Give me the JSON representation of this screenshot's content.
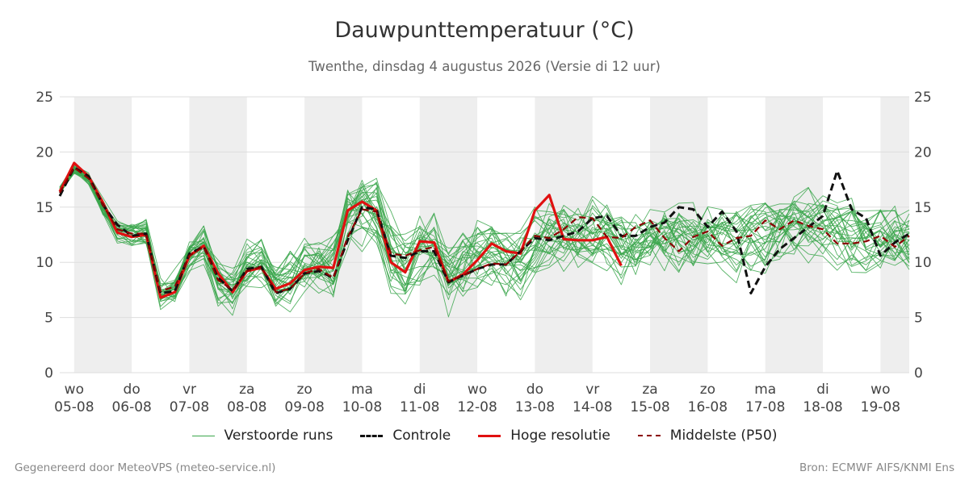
{
  "colors": {
    "members": "#3aa64b",
    "control": "#111111",
    "hires": "#e01010",
    "median": "#8b0000",
    "band": "#eeeeee",
    "grid": "#dddddd"
  },
  "footer": {
    "left": "Gegenereerd door MeteoVPS (meteo-service.nl)",
    "right": "Bron: ECMWF AIFS/KNMI Ens"
  },
  "chart_data": {
    "type": "line",
    "title": "Dauwpunttemperatuur (°C)",
    "subtitle": "Twenthe, dinsdag  4 augustus 2026 (Versie di 12 uur)",
    "ylim": [
      0,
      25
    ],
    "yticks": [
      0,
      5,
      10,
      15,
      20,
      25
    ],
    "xlim": [
      -0.25,
      14.5
    ],
    "grid": true,
    "legend_position": "bottom",
    "x_ticks": [
      {
        "day": "wo",
        "date": "05-08"
      },
      {
        "day": "do",
        "date": "06-08"
      },
      {
        "day": "vr",
        "date": "07-08"
      },
      {
        "day": "za",
        "date": "08-08"
      },
      {
        "day": "zo",
        "date": "09-08"
      },
      {
        "day": "ma",
        "date": "10-08"
      },
      {
        "day": "di",
        "date": "11-08"
      },
      {
        "day": "wo",
        "date": "12-08"
      },
      {
        "day": "do",
        "date": "13-08"
      },
      {
        "day": "vr",
        "date": "14-08"
      },
      {
        "day": "za",
        "date": "15-08"
      },
      {
        "day": "zo",
        "date": "16-08"
      },
      {
        "day": "ma",
        "date": "17-08"
      },
      {
        "day": "di",
        "date": "18-08"
      },
      {
        "day": "wo",
        "date": "19-08"
      }
    ],
    "x": [
      -0.25,
      0.0,
      0.25,
      0.5,
      0.75,
      1.0,
      1.25,
      1.5,
      1.75,
      2.0,
      2.25,
      2.5,
      2.75,
      3.0,
      3.25,
      3.5,
      3.75,
      4.0,
      4.25,
      4.5,
      4.75,
      5.0,
      5.25,
      5.5,
      5.75,
      6.0,
      6.25,
      6.5,
      6.75,
      7.0,
      7.25,
      7.5,
      7.75,
      8.0,
      8.25,
      8.5,
      8.75,
      9.0,
      9.25,
      9.5,
      9.75,
      10.0,
      10.25,
      10.5,
      10.75,
      11.0,
      11.25,
      11.5,
      11.75,
      12.0,
      12.25,
      12.5,
      12.75,
      13.0,
      13.25,
      13.5,
      13.75,
      14.0,
      14.25,
      14.5
    ],
    "series": [
      {
        "name": "Verstoorde runs",
        "role": "members",
        "style": "thin",
        "values": [
          16.5,
          18.5,
          17.5,
          15.0,
          12.8,
          12.6,
          12.6,
          7.0,
          7.6,
          10.8,
          11.6,
          8.4,
          7.4,
          9.4,
          9.6,
          7.6,
          8.2,
          9.4,
          9.6,
          9.2,
          14.0,
          14.8,
          14.4,
          10.4,
          9.6,
          11.4,
          11.4,
          8.4,
          9.2,
          10.4,
          11.0,
          10.4,
          10.2,
          11.4,
          12.6,
          12.6,
          12.4,
          12.6,
          12.6,
          11.4,
          11.2,
          12.6,
          13.0,
          12.6,
          12.2,
          12.4,
          12.2,
          12.0,
          12.2,
          12.4,
          12.6,
          13.0,
          13.2,
          13.0,
          12.8,
          12.4,
          12.0,
          12.0,
          12.4,
          12.2
        ]
      },
      {
        "name": "Controle",
        "role": "control",
        "style": "dashed",
        "values": [
          16.0,
          18.6,
          17.8,
          15.2,
          13.4,
          12.4,
          12.6,
          7.2,
          7.4,
          10.8,
          11.4,
          8.6,
          7.4,
          9.4,
          9.6,
          7.2,
          7.6,
          9.0,
          9.2,
          8.6,
          12.0,
          15.0,
          14.8,
          10.6,
          10.4,
          11.0,
          11.0,
          8.2,
          8.8,
          9.4,
          9.8,
          9.8,
          11.0,
          12.2,
          12.0,
          12.4,
          12.8,
          14.0,
          14.2,
          12.4,
          12.4,
          13.2,
          13.6,
          15.0,
          14.8,
          13.2,
          14.6,
          12.8,
          7.2,
          9.6,
          11.2,
          12.2,
          13.2,
          14.2,
          18.3,
          14.8,
          14.0,
          10.6,
          11.8,
          12.6
        ]
      },
      {
        "name": "Hoge resolutie",
        "role": "hires",
        "style": "thick",
        "values": [
          16.4,
          19.0,
          17.8,
          15.4,
          12.7,
          12.3,
          12.5,
          6.8,
          7.3,
          10.6,
          11.5,
          9.0,
          7.3,
          9.2,
          9.5,
          7.6,
          8.1,
          9.3,
          9.6,
          9.5,
          14.7,
          15.5,
          14.7,
          10.0,
          9.1,
          11.9,
          11.8,
          8.2,
          8.9,
          10.2,
          11.7,
          11.0,
          10.8,
          14.7,
          16.1,
          12.1,
          12.0,
          12.0,
          12.3,
          9.7,
          null,
          null,
          null,
          null,
          null,
          null,
          null,
          null,
          null,
          null,
          null,
          null,
          null,
          null,
          null,
          null,
          null,
          null,
          null,
          null
        ]
      },
      {
        "name": "Middelste (P50)",
        "role": "median",
        "style": "dashed",
        "values": [
          16.3,
          18.6,
          17.6,
          15.2,
          13.0,
          12.6,
          12.6,
          7.4,
          7.8,
          10.6,
          11.4,
          8.4,
          7.5,
          9.2,
          9.6,
          7.3,
          7.6,
          9.0,
          9.4,
          8.6,
          12.3,
          14.8,
          14.6,
          10.8,
          10.6,
          11.1,
          11.4,
          8.3,
          8.8,
          9.4,
          9.9,
          9.8,
          11.0,
          12.4,
          12.2,
          13.0,
          14.1,
          14.0,
          12.3,
          12.2,
          13.2,
          13.8,
          12.2,
          11.0,
          12.3,
          12.8,
          11.5,
          12.2,
          12.4,
          13.8,
          13.0,
          13.8,
          13.3,
          13.0,
          11.7,
          11.7,
          11.9,
          12.4,
          11.4,
          12.4
        ]
      }
    ]
  }
}
